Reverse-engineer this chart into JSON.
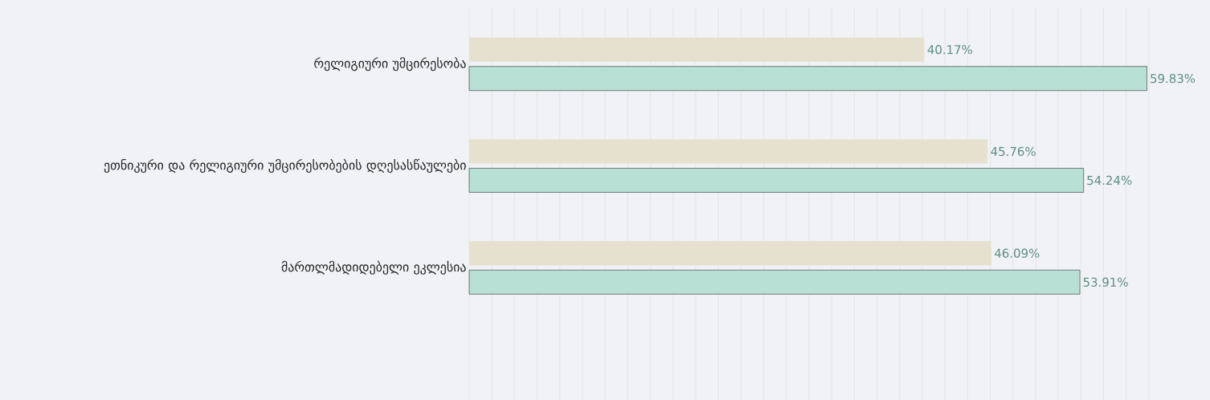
{
  "chart_data": {
    "type": "bar",
    "orientation": "horizontal",
    "categories": [
      "რელიგიური უმცირესობა",
      "ეთნიკური და რელიგიური უმცირესობების დღესასწაულები",
      "მართლმადიდებელი ეკლესია"
    ],
    "series": [
      {
        "color": "#e6e0cf",
        "values": [
          40.17,
          45.76,
          46.09
        ],
        "value_labels": [
          "40.17%",
          "45.76%",
          "46.09%"
        ]
      },
      {
        "color": "#b8e0d4",
        "values": [
          59.83,
          54.24,
          53.91
        ],
        "value_labels": [
          "59.83%",
          "54.24%",
          "53.91%"
        ]
      }
    ],
    "tick_labels": "y",
    "grid": "x"
  }
}
